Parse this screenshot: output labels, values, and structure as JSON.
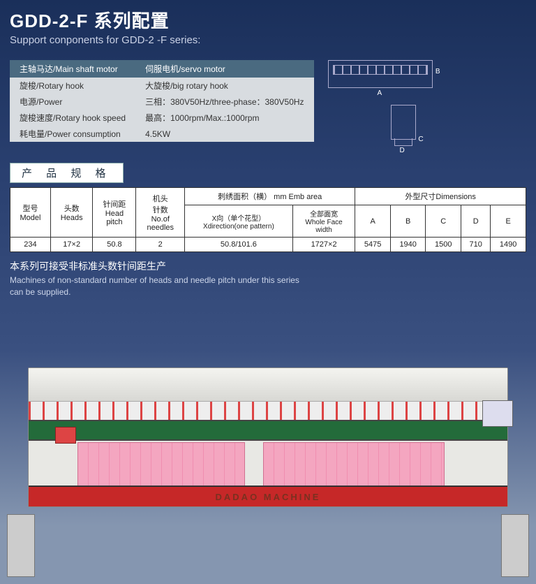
{
  "header": {
    "title_cn": "GDD-2-F 系列配置",
    "title_en": "Support conponents for GDD-2 -F series:"
  },
  "config_table": {
    "header_left": "主轴马达/Main shaft motor",
    "header_right": "伺服电机/servo motor",
    "rows": [
      {
        "label": "旋梭/Rotary hook",
        "value": "大旋梭/big rotary hook"
      },
      {
        "label": "电源/Power",
        "value": "三相：380V50Hz/three-phase：380V50Hz"
      },
      {
        "label": "旋梭速度/Rotary hook speed",
        "value": "最高：1000rpm/Max.:1000rpm"
      },
      {
        "label": "耗电量/Power consumption",
        "value": "4.5KW"
      }
    ],
    "header_bg": "#4a6a80",
    "cell_bg": "#d8dce0"
  },
  "diagram_labels": {
    "a": "A",
    "b": "B",
    "c": "C",
    "d": "D"
  },
  "spec_heading": "产 品 规 格",
  "spec_table": {
    "headers": {
      "model": "型号\nModel",
      "heads": "头数\nHeads",
      "pitch": "针间距\nHead\npitch",
      "needles": "机头\n针数\nNo.of\nneedles",
      "emb_area": "刺绣面积（横） mm Emb area",
      "x_dir": "X向（单个花型）\nXdirection(one pattern)",
      "whole": "全部面宽\nWhole Face\nwidth",
      "dims": "外型尺寸Dimensions",
      "a": "A",
      "b": "B",
      "c": "C",
      "d": "D",
      "e": "E"
    },
    "row": {
      "model": "234",
      "heads": "17×2",
      "pitch": "50.8",
      "needles": "2",
      "x_dir": "50.8/101.6",
      "whole": "1727×2",
      "a": "5475",
      "b": "1940",
      "c": "1500",
      "d": "710",
      "e": "1490"
    }
  },
  "note": {
    "cn": "本系列可接受非标准头数针间距生产",
    "en": "Machines of non-standard number of heads and needle pitch under this series can be supplied."
  },
  "machine": {
    "brand_text": "DADAO MACHINE",
    "base_color": "#c62828",
    "fabric_color": "#f4a6c0",
    "mid_color": "#236b3a"
  }
}
